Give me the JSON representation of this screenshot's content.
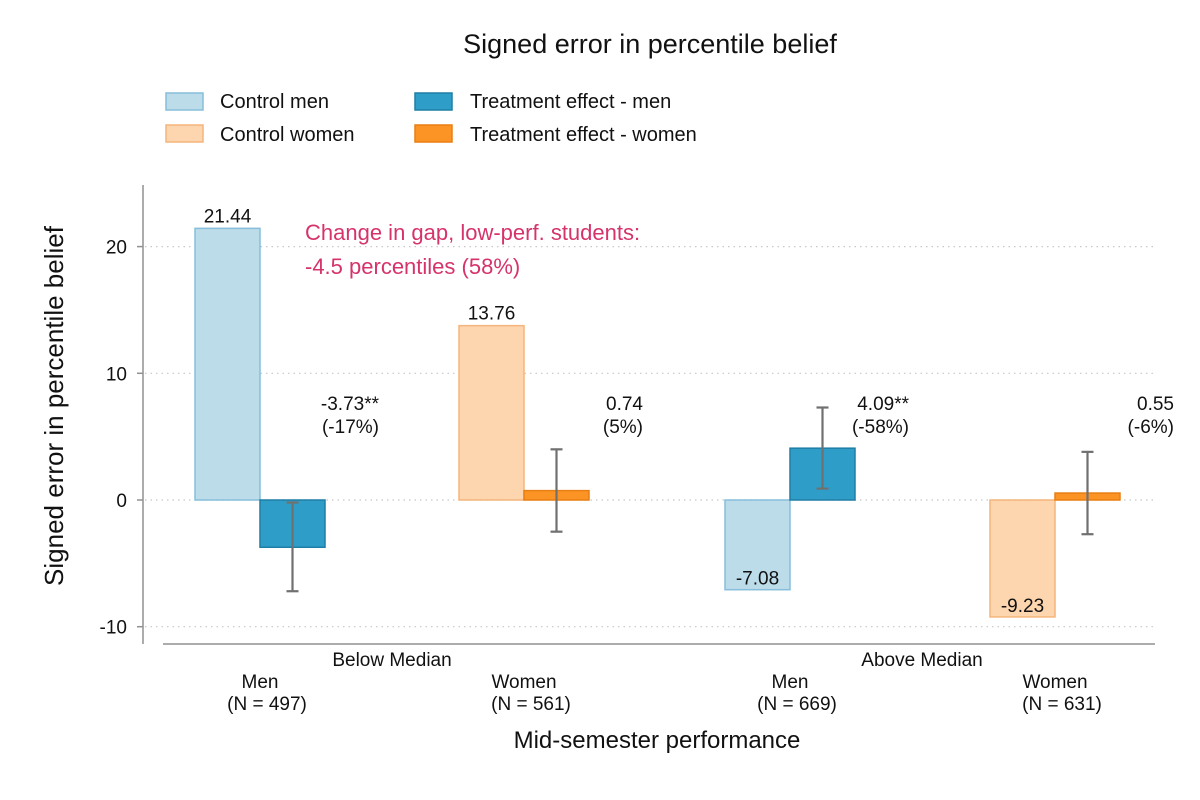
{
  "chart_data": {
    "type": "bar",
    "title": "Signed error in percentile belief",
    "xlabel": "Mid-semester performance",
    "ylabel": "Signed error in percentile belief",
    "ylim": [
      -10,
      25
    ],
    "yticks": [
      -10,
      0,
      10,
      20
    ],
    "ytick_labels": [
      "-10",
      "0",
      "10",
      "20"
    ],
    "grid": true,
    "legend_position": "top",
    "legend": [
      {
        "name": "Control men",
        "color": "#bcdcea",
        "edge": "#86bedb"
      },
      {
        "name": "Treatment effect - men",
        "color": "#2e9ec9",
        "edge": "#1f7ea6"
      },
      {
        "name": "Control women",
        "color": "#fdd5ae",
        "edge": "#f5b57c"
      },
      {
        "name": "Treatment effect - women",
        "color": "#fb9325",
        "edge": "#e97f12"
      }
    ],
    "groups": [
      {
        "label": "Below Median",
        "subgroups": [
          {
            "label": "Men",
            "n_label": "(N =  497)",
            "gender": "men",
            "control": 21.44,
            "control_label": "21.44",
            "treatment": -3.73,
            "treatment_ci": [
              -7.2,
              -0.2
            ],
            "treatment_label": "-3.73**",
            "treatment_pct_label": "(-17%)"
          },
          {
            "label": "Women",
            "n_label": "(N =  561)",
            "gender": "women",
            "control": 13.76,
            "control_label": "13.76",
            "treatment": 0.74,
            "treatment_ci": [
              -2.5,
              4.0
            ],
            "treatment_label": "0.74",
            "treatment_pct_label": "(5%)"
          }
        ]
      },
      {
        "label": "Above Median",
        "subgroups": [
          {
            "label": "Men",
            "n_label": "(N =  669)",
            "gender": "men",
            "control": -7.08,
            "control_label": "-7.08",
            "treatment": 4.09,
            "treatment_ci": [
              0.9,
              7.3
            ],
            "treatment_label": "4.09**",
            "treatment_pct_label": "(-58%)"
          },
          {
            "label": "Women",
            "n_label": "(N =  631)",
            "gender": "women",
            "control": -9.23,
            "control_label": "-9.23",
            "treatment": 0.55,
            "treatment_ci": [
              -2.7,
              3.8
            ],
            "treatment_label": "0.55",
            "treatment_pct_label": "(-6%)"
          }
        ]
      }
    ],
    "annotation": {
      "lines": [
        "Change in gap, low-perf. students:",
        "-4.5 percentiles (58%)"
      ],
      "color": "#d6336c"
    },
    "error_bar_color": "#707070",
    "axis_color": "#909090"
  }
}
